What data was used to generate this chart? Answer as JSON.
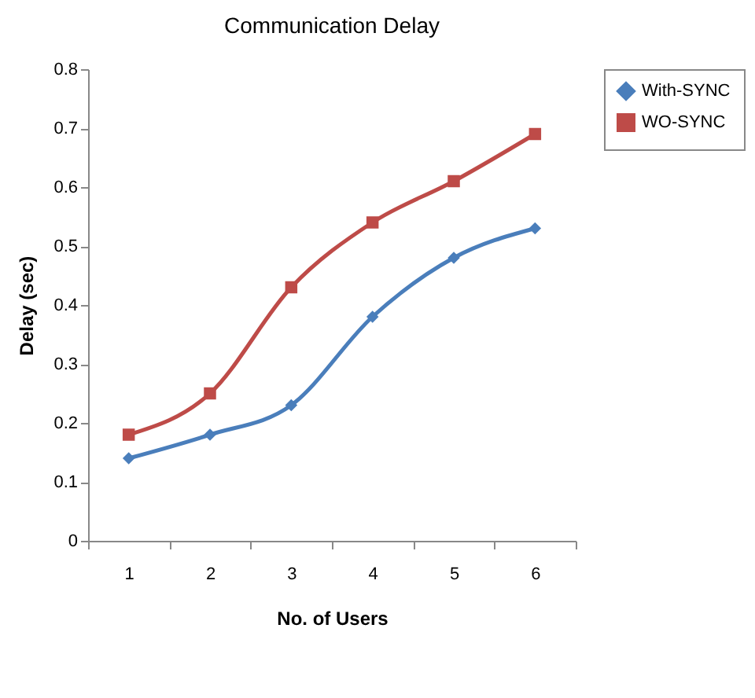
{
  "chart_data": {
    "type": "line",
    "title": "Communication Delay",
    "xlabel": "No. of Users",
    "ylabel": "Delay (sec)",
    "categories": [
      "1",
      "2",
      "3",
      "4",
      "5",
      "6"
    ],
    "series": [
      {
        "name": "With-SYNC",
        "color": "#4a7ebb",
        "marker": "diamond",
        "values": [
          0.14,
          0.18,
          0.23,
          0.38,
          0.48,
          0.53
        ]
      },
      {
        "name": "WO-SYNC",
        "color": "#be4b48",
        "marker": "square",
        "values": [
          0.18,
          0.25,
          0.43,
          0.54,
          0.61,
          0.69
        ]
      }
    ],
    "ylim": [
      0,
      0.8
    ],
    "yticks": [
      0,
      0.1,
      0.2,
      0.3,
      0.4,
      0.5,
      0.6,
      0.7,
      0.8
    ],
    "grid": false,
    "legend": "right"
  }
}
